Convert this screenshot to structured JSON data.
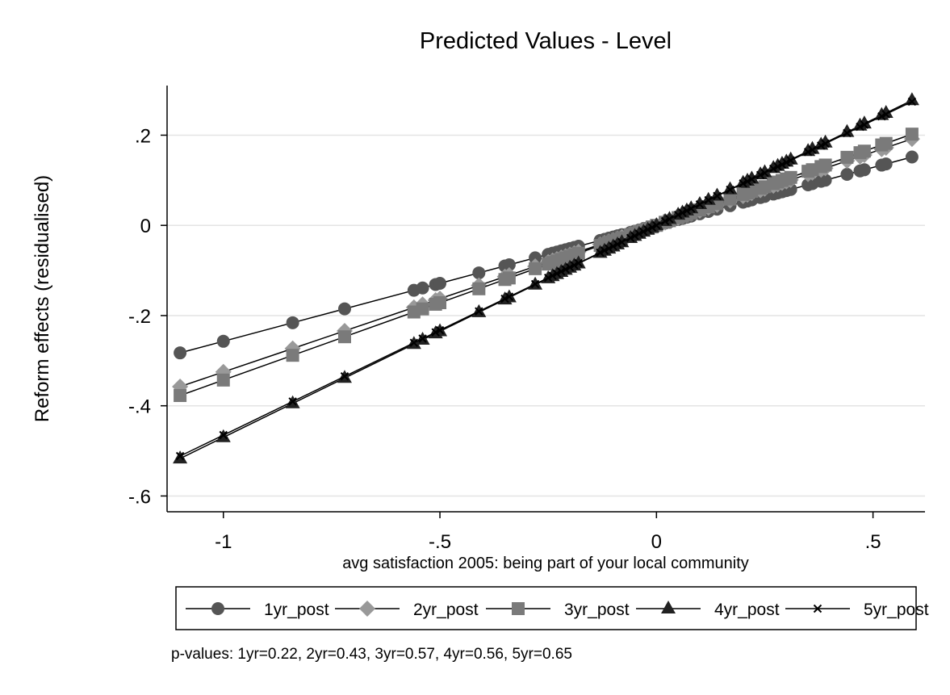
{
  "chart_data": {
    "type": "line",
    "title": "Predicted Values - Level",
    "xlabel": "avg satisfaction 2005: being part of your local community",
    "ylabel": "Reform effects (residualised)",
    "xlim": [
      -1.13,
      0.62
    ],
    "ylim": [
      -0.635,
      0.31
    ],
    "xticks": [
      -1,
      -0.5,
      0,
      0.5
    ],
    "xtick_labels": [
      "-1",
      "-.5",
      "0",
      ".5"
    ],
    "yticks": [
      0.2,
      0,
      -0.2,
      -0.4,
      -0.6
    ],
    "ytick_labels": [
      ".2",
      "0",
      "-.2",
      "-.4",
      "-.6"
    ],
    "grid": true,
    "legend_position": "bottom",
    "x": [
      -1.1,
      -1.0,
      -0.84,
      -0.72,
      -0.56,
      -0.54,
      -0.51,
      -0.5,
      -0.41,
      -0.35,
      -0.34,
      -0.28,
      -0.25,
      -0.24,
      -0.23,
      -0.22,
      -0.21,
      -0.2,
      -0.19,
      -0.18,
      -0.13,
      -0.12,
      -0.11,
      -0.1,
      -0.09,
      -0.08,
      -0.06,
      -0.05,
      -0.04,
      -0.03,
      -0.02,
      -0.01,
      0.0,
      0.02,
      0.03,
      0.05,
      0.06,
      0.07,
      0.08,
      0.1,
      0.12,
      0.14,
      0.17,
      0.2,
      0.21,
      0.22,
      0.24,
      0.25,
      0.27,
      0.28,
      0.29,
      0.3,
      0.31,
      0.35,
      0.36,
      0.38,
      0.39,
      0.44,
      0.47,
      0.48,
      0.52,
      0.53,
      0.59
    ],
    "series": [
      {
        "name": "1yr_post",
        "slope": 0.257,
        "marker": "circle",
        "color": "#555555"
      },
      {
        "name": "2yr_post",
        "slope": 0.325,
        "marker": "diamond",
        "color": "#999999"
      },
      {
        "name": "3yr_post",
        "slope": 0.343,
        "marker": "square",
        "color": "#7a7a7a"
      },
      {
        "name": "4yr_post",
        "slope": 0.47,
        "marker": "triangle",
        "color": "#222222"
      },
      {
        "name": "5yr_post",
        "slope": 0.465,
        "marker": "x",
        "color": "#000000"
      }
    ],
    "note": "p-values: 1yr=0.22,  2yr=0.43,  3yr=0.57,  4yr=0.56,  5yr=0.65"
  }
}
